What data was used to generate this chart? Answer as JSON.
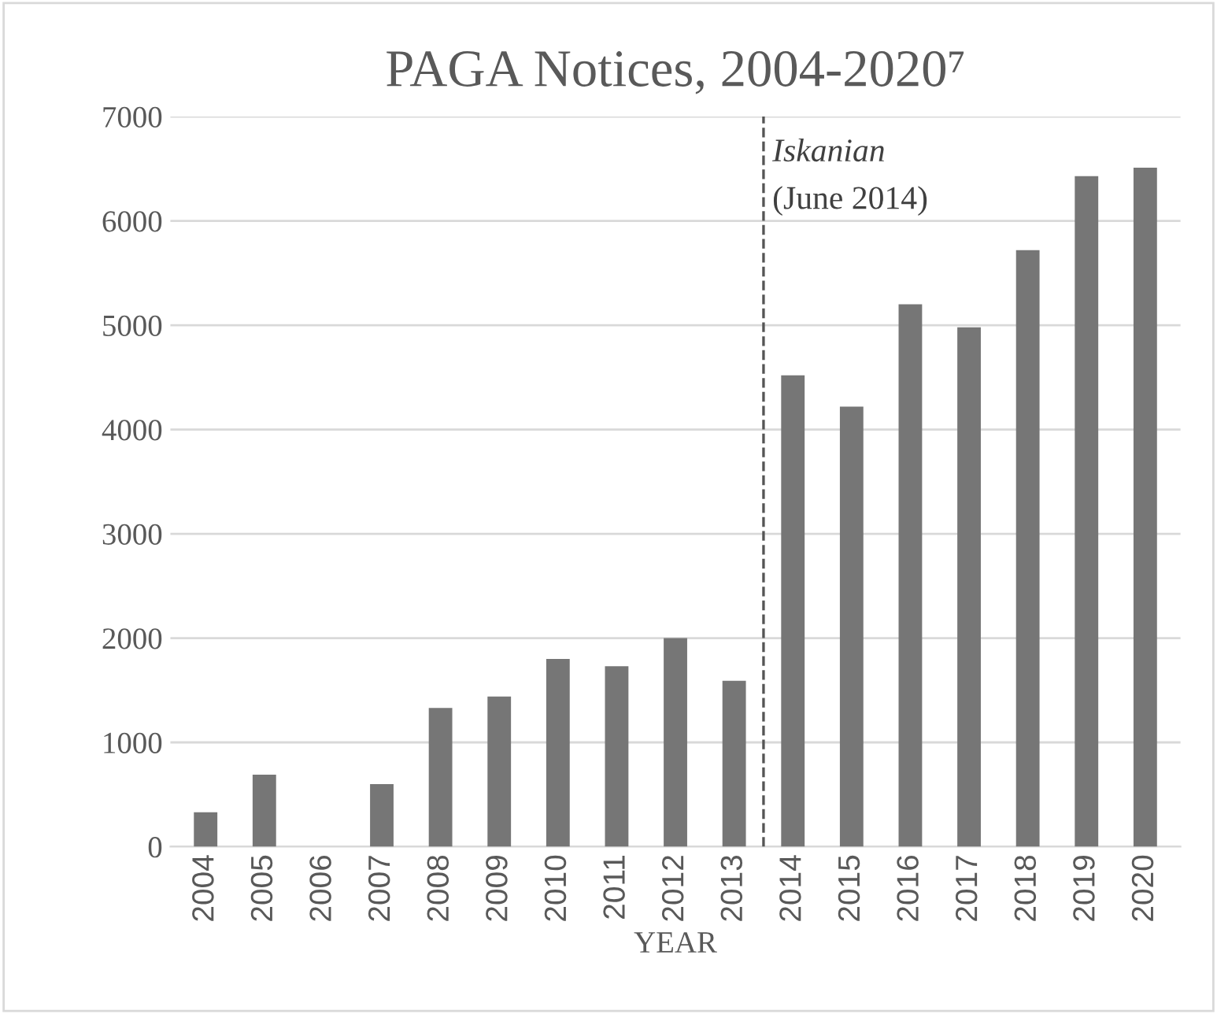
{
  "chart_data": {
    "type": "bar",
    "title": "PAGA Notices, 2004-2020⁷",
    "xlabel": "YEAR",
    "categories": [
      "2004",
      "2005",
      "2006",
      "2007",
      "2008",
      "2009",
      "2010",
      "2011",
      "2012",
      "2013",
      "2014",
      "2015",
      "2016",
      "2017",
      "2018",
      "2019",
      "2020"
    ],
    "values": [
      330,
      690,
      0,
      600,
      1330,
      1440,
      1800,
      1730,
      2000,
      1590,
      4520,
      4220,
      5200,
      4980,
      5720,
      6430,
      6510
    ],
    "color": "#767676",
    "ylim": [
      0,
      7000
    ],
    "yticks": [
      0,
      1000,
      2000,
      3000,
      4000,
      5000,
      6000,
      7000
    ],
    "grid": "y",
    "ref_lines": [
      {
        "axis": "x",
        "value": "2014",
        "label": "Iskanian\n(June 2014)",
        "color": "#555555",
        "line_style": "dashed"
      }
    ]
  }
}
